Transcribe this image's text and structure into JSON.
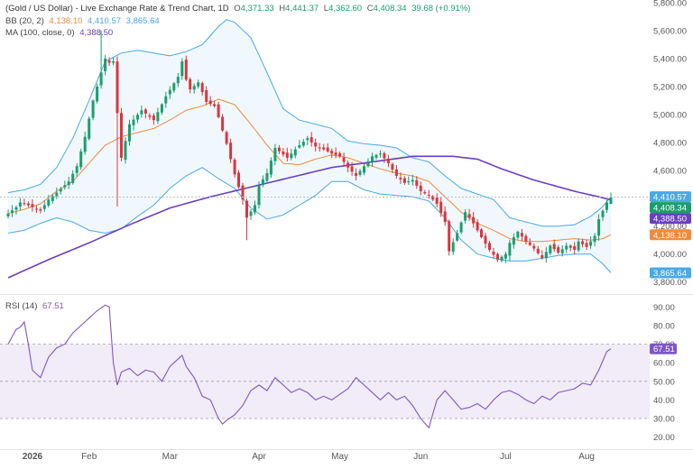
{
  "header": {
    "symbol_title": "(Gold / US Dollar) - Live Exchange Rate & Trend Chart, 1D",
    "open_label": "O",
    "open": "4,371.33",
    "high_label": "H",
    "high": "4,441.37",
    "low_label": "L",
    "low": "4,362.60",
    "close_label": "C",
    "close": "4,408.34",
    "change": "39.68 (+0.91%)"
  },
  "indicators": {
    "bb_label": "BB (20, 2)",
    "bb_basis": "4,138.10",
    "bb_upper": "4,410.57",
    "bb_lower": "3,865.64",
    "ma_label": "MA (100, close, 0)",
    "ma_value": "4,388.50",
    "rsi_label": "RSI (14)",
    "rsi_value": "67.51"
  },
  "colors": {
    "up": "#1a9e6e",
    "down": "#d9363e",
    "bb_band": "#48a9e6",
    "bb_basis": "#f08a3c",
    "ma": "#6a3fc0",
    "rsi": "#7e57c2",
    "rsi_fill": "#ede7f6"
  },
  "chart_data": [
    {
      "type": "candlestick",
      "price_axis_ticks": [
        3800,
        4000,
        4200,
        4400,
        4600,
        4800,
        5000,
        5200,
        5400,
        5600,
        5800
      ],
      "price_axis_labels": [
        "3,800.00",
        "4,000.00",
        "4,200.00",
        "4,400.00",
        "4,600.00",
        "4,800.00",
        "5,000.00",
        "5,200.00",
        "5,400.00",
        "5,600.00",
        "5,800.00"
      ],
      "ylim": [
        3720,
        5820
      ],
      "time_labels": [
        "2026",
        "Feb",
        "Mar",
        "Apr",
        "May",
        "Jun",
        "Jul",
        "Aug"
      ],
      "time_label_positions": [
        0,
        20,
        40,
        62,
        82,
        102,
        123,
        143
      ],
      "bar_count": 150,
      "price_markers": [
        {
          "key": "bb_upper",
          "value": 4410.57,
          "label": "4,410.57",
          "color": "#48a9e6"
        },
        {
          "key": "last",
          "value": 4408.34,
          "label": "4,408.34",
          "color": "#1a9e6e"
        },
        {
          "key": "ma",
          "value": 4388.5,
          "label": "4,388.50",
          "color": "#6a3fc0"
        },
        {
          "key": "bb_basis",
          "value": 4138.1,
          "label": "4,138.10",
          "color": "#f08a3c"
        },
        {
          "key": "bb_lower",
          "value": 3865.64,
          "label": "3,865.64",
          "color": "#48a9e6"
        }
      ],
      "close_anchors": [
        [
          0,
          4290
        ],
        [
          2,
          4335
        ],
        [
          3,
          4370
        ],
        [
          5,
          4350
        ],
        [
          8,
          4310
        ],
        [
          10,
          4390
        ],
        [
          12,
          4440
        ],
        [
          15,
          4520
        ],
        [
          17,
          4630
        ],
        [
          19,
          4840
        ],
        [
          21,
          5100
        ],
        [
          23,
          5300
        ],
        [
          24,
          5400
        ],
        [
          25,
          5370
        ],
        [
          26,
          5380
        ],
        [
          27,
          5010
        ],
        [
          28,
          4690
        ],
        [
          30,
          4930
        ],
        [
          33,
          5030
        ],
        [
          36,
          4960
        ],
        [
          39,
          5130
        ],
        [
          42,
          5270
        ],
        [
          43,
          5380
        ],
        [
          44,
          5250
        ],
        [
          45,
          5180
        ],
        [
          47,
          5230
        ],
        [
          49,
          5090
        ],
        [
          51,
          5060
        ],
        [
          52,
          4980
        ],
        [
          54,
          4790
        ],
        [
          56,
          4570
        ],
        [
          58,
          4390
        ],
        [
          59,
          4260
        ],
        [
          61,
          4350
        ],
        [
          62,
          4490
        ],
        [
          64,
          4580
        ],
        [
          66,
          4760
        ],
        [
          69,
          4690
        ],
        [
          72,
          4780
        ],
        [
          74,
          4830
        ],
        [
          76,
          4770
        ],
        [
          78,
          4750
        ],
        [
          80,
          4720
        ],
        [
          82,
          4700
        ],
        [
          84,
          4620
        ],
        [
          86,
          4560
        ],
        [
          88,
          4630
        ],
        [
          90,
          4700
        ],
        [
          92,
          4720
        ],
        [
          94,
          4650
        ],
        [
          96,
          4560
        ],
        [
          98,
          4510
        ],
        [
          100,
          4530
        ],
        [
          102,
          4450
        ],
        [
          104,
          4420
        ],
        [
          106,
          4360
        ],
        [
          108,
          4230
        ],
        [
          109,
          4020
        ],
        [
          111,
          4150
        ],
        [
          113,
          4300
        ],
        [
          115,
          4220
        ],
        [
          117,
          4120
        ],
        [
          119,
          4030
        ],
        [
          121,
          3960
        ],
        [
          123,
          4000
        ],
        [
          124,
          4080
        ],
        [
          126,
          4160
        ],
        [
          128,
          4090
        ],
        [
          130,
          4040
        ],
        [
          132,
          3970
        ],
        [
          134,
          4060
        ],
        [
          136,
          4010
        ],
        [
          138,
          4060
        ],
        [
          140,
          4030
        ],
        [
          141,
          4090
        ],
        [
          143,
          4050
        ],
        [
          145,
          4130
        ],
        [
          146,
          4250
        ],
        [
          148,
          4370
        ],
        [
          149,
          4408
        ]
      ],
      "bb_upper_anchors": [
        [
          0,
          4440
        ],
        [
          4,
          4460
        ],
        [
          8,
          4500
        ],
        [
          12,
          4620
        ],
        [
          16,
          4830
        ],
        [
          20,
          5100
        ],
        [
          24,
          5380
        ],
        [
          28,
          5440
        ],
        [
          32,
          5460
        ],
        [
          36,
          5440
        ],
        [
          40,
          5420
        ],
        [
          44,
          5450
        ],
        [
          48,
          5500
        ],
        [
          52,
          5630
        ],
        [
          54,
          5680
        ],
        [
          56,
          5660
        ],
        [
          60,
          5550
        ],
        [
          64,
          5300
        ],
        [
          68,
          5040
        ],
        [
          72,
          4960
        ],
        [
          76,
          4930
        ],
        [
          80,
          4900
        ],
        [
          84,
          4810
        ],
        [
          88,
          4790
        ],
        [
          92,
          4780
        ],
        [
          96,
          4760
        ],
        [
          100,
          4690
        ],
        [
          104,
          4660
        ],
        [
          108,
          4560
        ],
        [
          112,
          4470
        ],
        [
          116,
          4430
        ],
        [
          120,
          4390
        ],
        [
          124,
          4260
        ],
        [
          128,
          4230
        ],
        [
          132,
          4200
        ],
        [
          136,
          4200
        ],
        [
          140,
          4210
        ],
        [
          144,
          4270
        ],
        [
          147,
          4340
        ],
        [
          149,
          4410
        ]
      ],
      "bb_lower_anchors": [
        [
          0,
          4150
        ],
        [
          4,
          4170
        ],
        [
          8,
          4220
        ],
        [
          12,
          4260
        ],
        [
          16,
          4230
        ],
        [
          20,
          4170
        ],
        [
          24,
          4150
        ],
        [
          28,
          4180
        ],
        [
          32,
          4270
        ],
        [
          36,
          4350
        ],
        [
          40,
          4470
        ],
        [
          44,
          4560
        ],
        [
          48,
          4620
        ],
        [
          52,
          4540
        ],
        [
          56,
          4470
        ],
        [
          60,
          4330
        ],
        [
          64,
          4250
        ],
        [
          68,
          4280
        ],
        [
          72,
          4350
        ],
        [
          76,
          4420
        ],
        [
          80,
          4520
        ],
        [
          84,
          4520
        ],
        [
          88,
          4460
        ],
        [
          92,
          4430
        ],
        [
          96,
          4420
        ],
        [
          100,
          4410
        ],
        [
          104,
          4380
        ],
        [
          108,
          4260
        ],
        [
          112,
          4100
        ],
        [
          116,
          4000
        ],
        [
          120,
          3970
        ],
        [
          124,
          3950
        ],
        [
          128,
          3950
        ],
        [
          132,
          3970
        ],
        [
          136,
          3990
        ],
        [
          140,
          4000
        ],
        [
          144,
          4000
        ],
        [
          147,
          3930
        ],
        [
          149,
          3866
        ]
      ],
      "bb_basis_anchors": [
        [
          0,
          4290
        ],
        [
          4,
          4320
        ],
        [
          8,
          4360
        ],
        [
          12,
          4450
        ],
        [
          16,
          4520
        ],
        [
          20,
          4650
        ],
        [
          24,
          4780
        ],
        [
          28,
          4840
        ],
        [
          32,
          4870
        ],
        [
          36,
          4900
        ],
        [
          40,
          4960
        ],
        [
          44,
          5030
        ],
        [
          48,
          5060
        ],
        [
          52,
          5110
        ],
        [
          56,
          5070
        ],
        [
          60,
          4930
        ],
        [
          64,
          4780
        ],
        [
          68,
          4650
        ],
        [
          72,
          4640
        ],
        [
          76,
          4680
        ],
        [
          80,
          4710
        ],
        [
          84,
          4690
        ],
        [
          88,
          4650
        ],
        [
          92,
          4610
        ],
        [
          96,
          4580
        ],
        [
          100,
          4560
        ],
        [
          104,
          4520
        ],
        [
          108,
          4410
        ],
        [
          112,
          4300
        ],
        [
          116,
          4220
        ],
        [
          120,
          4170
        ],
        [
          124,
          4110
        ],
        [
          128,
          4090
        ],
        [
          132,
          4090
        ],
        [
          136,
          4100
        ],
        [
          140,
          4110
        ],
        [
          144,
          4100
        ],
        [
          147,
          4110
        ],
        [
          149,
          4138
        ]
      ],
      "ma_anchors": [
        [
          0,
          3830
        ],
        [
          10,
          3960
        ],
        [
          20,
          4080
        ],
        [
          30,
          4210
        ],
        [
          40,
          4330
        ],
        [
          50,
          4410
        ],
        [
          60,
          4480
        ],
        [
          70,
          4550
        ],
        [
          80,
          4620
        ],
        [
          90,
          4660
        ],
        [
          100,
          4700
        ],
        [
          110,
          4700
        ],
        [
          116,
          4680
        ],
        [
          122,
          4610
        ],
        [
          130,
          4530
        ],
        [
          140,
          4450
        ],
        [
          146,
          4410
        ],
        [
          149,
          4388
        ]
      ]
    },
    {
      "type": "line",
      "name": "RSI (14)",
      "ylim": [
        14,
        96
      ],
      "y_axis_ticks": [
        20,
        30,
        40,
        50,
        60,
        70,
        80,
        90
      ],
      "y_axis_labels": [
        "20.00",
        "30.00",
        "40.00",
        "50.00",
        "60.00",
        "70.00",
        "80.00",
        "90.00"
      ],
      "band": [
        30,
        70
      ],
      "midline": 50,
      "last_value": 67.51,
      "anchors": [
        [
          0,
          70
        ],
        [
          2,
          78
        ],
        [
          3,
          79
        ],
        [
          4,
          82
        ],
        [
          5,
          70
        ],
        [
          6,
          56
        ],
        [
          8,
          52
        ],
        [
          10,
          63
        ],
        [
          12,
          68
        ],
        [
          14,
          70
        ],
        [
          16,
          76
        ],
        [
          18,
          80
        ],
        [
          20,
          84
        ],
        [
          22,
          88
        ],
        [
          24,
          91
        ],
        [
          25,
          90
        ],
        [
          26,
          60
        ],
        [
          27,
          48
        ],
        [
          28,
          55
        ],
        [
          30,
          57
        ],
        [
          32,
          53
        ],
        [
          34,
          56
        ],
        [
          36,
          55
        ],
        [
          38,
          50
        ],
        [
          40,
          58
        ],
        [
          42,
          62
        ],
        [
          43,
          64
        ],
        [
          44,
          58
        ],
        [
          46,
          52
        ],
        [
          48,
          42
        ],
        [
          50,
          40
        ],
        [
          52,
          30
        ],
        [
          53,
          27
        ],
        [
          54,
          29
        ],
        [
          56,
          32
        ],
        [
          58,
          37
        ],
        [
          60,
          45
        ],
        [
          62,
          48
        ],
        [
          64,
          45
        ],
        [
          66,
          52
        ],
        [
          68,
          48
        ],
        [
          70,
          44
        ],
        [
          72,
          46
        ],
        [
          74,
          44
        ],
        [
          76,
          40
        ],
        [
          78,
          42
        ],
        [
          80,
          40
        ],
        [
          82,
          43
        ],
        [
          84,
          46
        ],
        [
          86,
          52
        ],
        [
          88,
          48
        ],
        [
          90,
          44
        ],
        [
          92,
          40
        ],
        [
          94,
          44
        ],
        [
          96,
          40
        ],
        [
          98,
          42
        ],
        [
          100,
          37
        ],
        [
          102,
          30
        ],
        [
          104,
          25
        ],
        [
          106,
          40
        ],
        [
          108,
          45
        ],
        [
          110,
          40
        ],
        [
          112,
          35
        ],
        [
          114,
          36
        ],
        [
          116,
          38
        ],
        [
          118,
          35
        ],
        [
          120,
          40
        ],
        [
          122,
          44
        ],
        [
          124,
          45
        ],
        [
          126,
          43
        ],
        [
          128,
          40
        ],
        [
          130,
          38
        ],
        [
          132,
          42
        ],
        [
          134,
          40
        ],
        [
          136,
          44
        ],
        [
          138,
          45
        ],
        [
          140,
          46
        ],
        [
          142,
          49
        ],
        [
          144,
          48
        ],
        [
          146,
          56
        ],
        [
          147,
          61
        ],
        [
          148,
          66
        ],
        [
          149,
          67.5
        ]
      ]
    }
  ]
}
